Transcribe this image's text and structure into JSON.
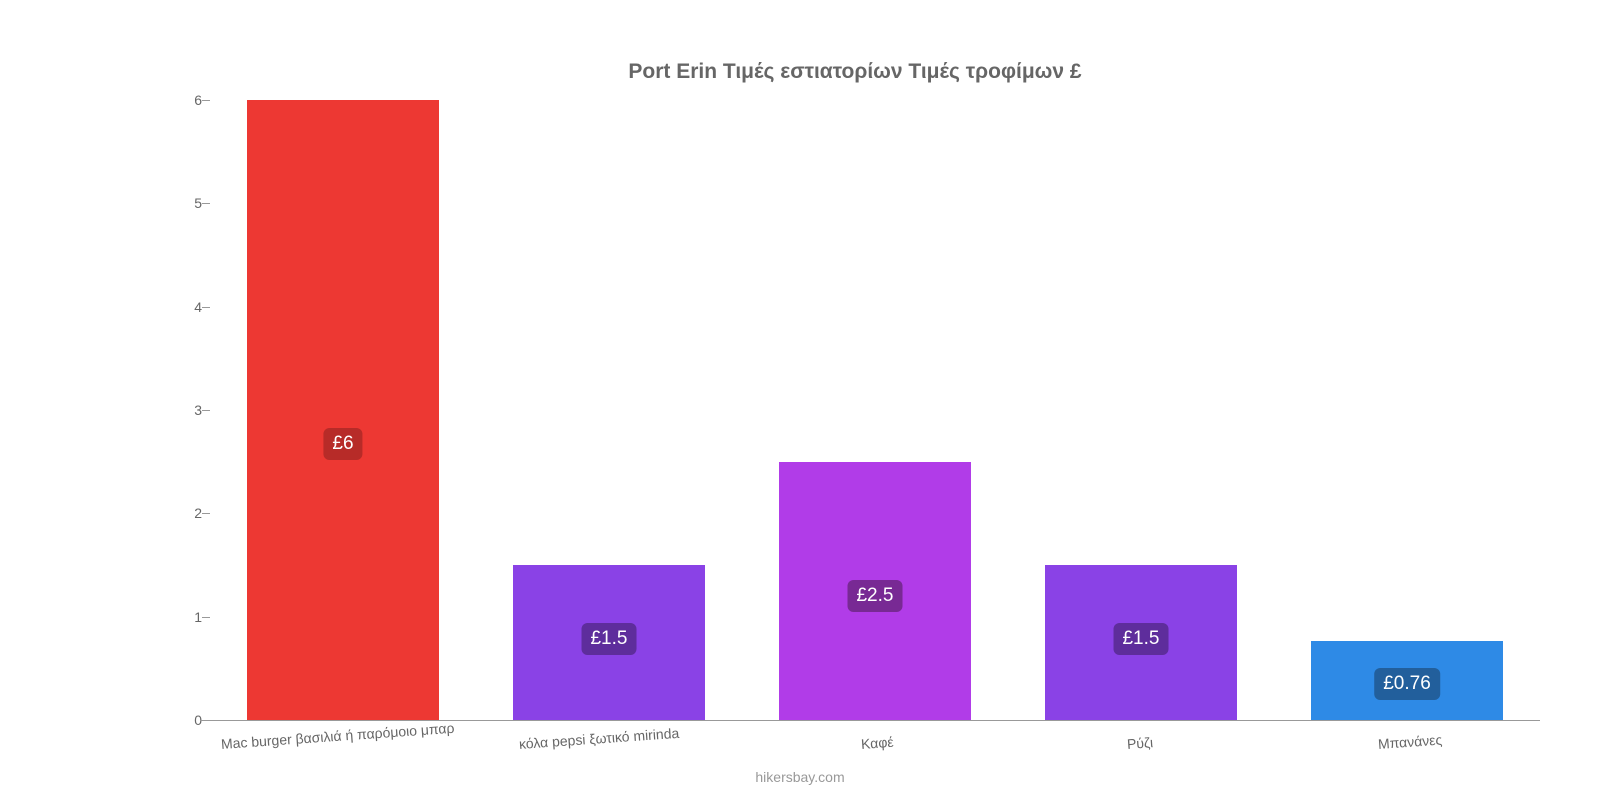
{
  "chart": {
    "type": "bar",
    "title": "Port Erin Τιμές εστιατορίων Τιμές τροφίμων £",
    "title_color": "#666666",
    "title_fontsize": 21,
    "background_color": "#ffffff",
    "ylim": [
      0,
      6
    ],
    "yticks": [
      0,
      1,
      2,
      3,
      4,
      5,
      6
    ],
    "axis_color": "#999999",
    "tick_label_color": "#666666",
    "tick_label_fontsize": 14,
    "bar_width_ratio": 0.72,
    "categories": [
      "Mac burger βασιλιά ή παρόμοιο μπαρ",
      "κόλα pepsi ξωτικό mirinda",
      "Καφέ",
      "Ρύζι",
      "Μπανάνες"
    ],
    "values": [
      6,
      1.5,
      2.5,
      1.5,
      0.76
    ],
    "value_labels": [
      "£6",
      "£1.5",
      "£2.5",
      "£1.5",
      "£0.76"
    ],
    "bar_colors": [
      "#ed3833",
      "#8a42e6",
      "#b13ce8",
      "#8a42e6",
      "#2e8ae6"
    ],
    "label_badge_colors": [
      "#b72b28",
      "#5e2d9c",
      "#782994",
      "#5e2d9c",
      "#225f9c"
    ],
    "label_text_color": "#ffffff",
    "label_fontsize": 19,
    "x_label_rotation_deg": -4,
    "attribution": "hikersbay.com",
    "attribution_color": "#999999"
  }
}
